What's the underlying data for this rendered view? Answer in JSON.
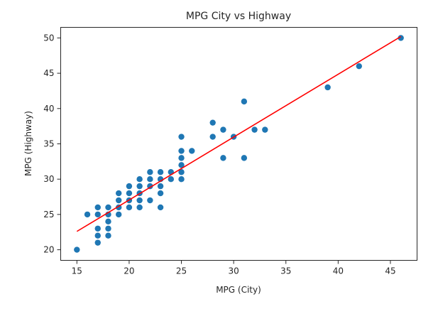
{
  "chart_data": {
    "type": "scatter",
    "title": "MPG City vs Highway",
    "xlabel": "MPG (City)",
    "ylabel": "MPG (Highway)",
    "xlim": [
      13.45,
      47.55
    ],
    "ylim": [
      18.5,
      51.5
    ],
    "xticks": [
      15,
      20,
      25,
      30,
      35,
      40,
      45
    ],
    "yticks": [
      20,
      25,
      30,
      35,
      40,
      45,
      50
    ],
    "grid": false,
    "legend": "none",
    "colors": {
      "points": "#1f77b4",
      "fit_line": "#ff0000",
      "axes": "#262626"
    },
    "series": [
      {
        "kind": "scatter",
        "points": [
          [
            15,
            20
          ],
          [
            16,
            25
          ],
          [
            17,
            21
          ],
          [
            17,
            22
          ],
          [
            17,
            23
          ],
          [
            17,
            25
          ],
          [
            17,
            26
          ],
          [
            18,
            22
          ],
          [
            18,
            23
          ],
          [
            18,
            24
          ],
          [
            18,
            25
          ],
          [
            18,
            26
          ],
          [
            19,
            25
          ],
          [
            19,
            26
          ],
          [
            19,
            27
          ],
          [
            19,
            28
          ],
          [
            20,
            26
          ],
          [
            20,
            27
          ],
          [
            20,
            28
          ],
          [
            20,
            29
          ],
          [
            21,
            26
          ],
          [
            21,
            27
          ],
          [
            21,
            28
          ],
          [
            21,
            29
          ],
          [
            21,
            30
          ],
          [
            22,
            27
          ],
          [
            22,
            29
          ],
          [
            22,
            30
          ],
          [
            22,
            31
          ],
          [
            23,
            26
          ],
          [
            23,
            28
          ],
          [
            23,
            29
          ],
          [
            23,
            30
          ],
          [
            23,
            31
          ],
          [
            24,
            30
          ],
          [
            24,
            31
          ],
          [
            25,
            30
          ],
          [
            25,
            31
          ],
          [
            25,
            32
          ],
          [
            25,
            33
          ],
          [
            25,
            34
          ],
          [
            25,
            36
          ],
          [
            26,
            34
          ],
          [
            28,
            36
          ],
          [
            28,
            38
          ],
          [
            29,
            33
          ],
          [
            29,
            37
          ],
          [
            30,
            36
          ],
          [
            31,
            33
          ],
          [
            31,
            41
          ],
          [
            32,
            37
          ],
          [
            33,
            37
          ],
          [
            39,
            43
          ],
          [
            42,
            46
          ],
          [
            46,
            50
          ]
        ]
      },
      {
        "kind": "line",
        "points": [
          [
            15,
            22.6
          ],
          [
            46,
            50.2
          ]
        ]
      }
    ]
  }
}
